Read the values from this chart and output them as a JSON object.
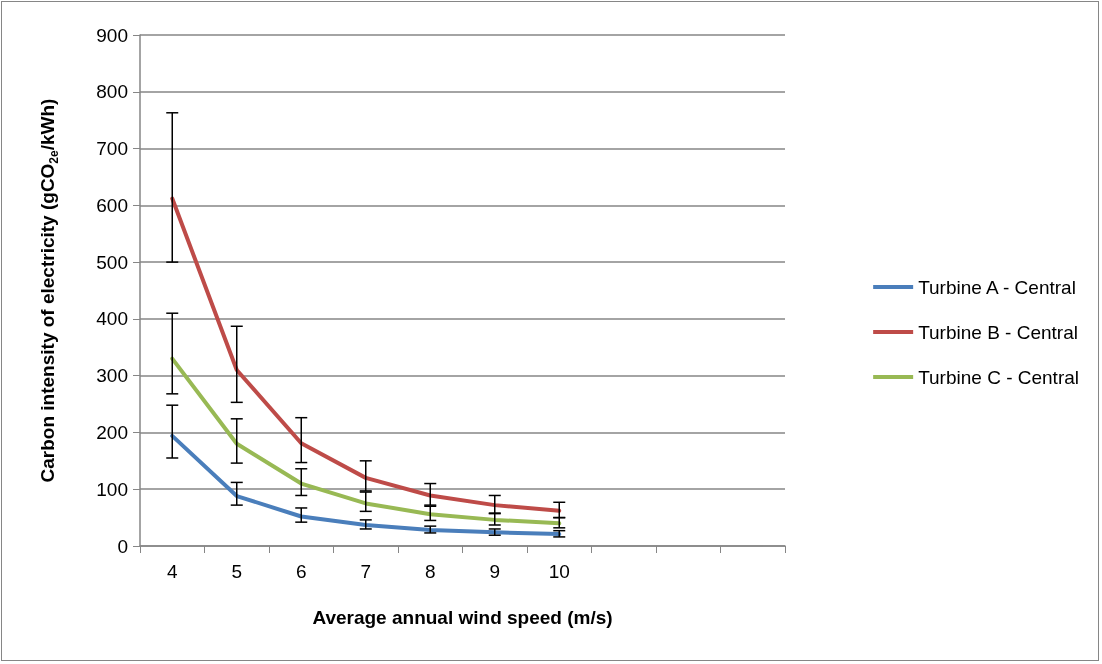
{
  "chart_data": {
    "type": "line",
    "xlabel": "Average annual wind speed (m/s)",
    "ylabel": "Carbon intensity of electricity (gCO$_{2e}$/kWh)",
    "categories": [
      "4",
      "5",
      "6",
      "7",
      "8",
      "9",
      "10",
      null,
      null,
      null
    ],
    "series": [
      {
        "name": "Turbine A - Central",
        "color": "#4a7ebb",
        "values": [
          194,
          88,
          52,
          37,
          28,
          24,
          21,
          null,
          null,
          null
        ],
        "errors": [
          [
            155,
            248
          ],
          [
            72,
            112
          ],
          [
            42,
            67
          ],
          [
            30,
            46
          ],
          [
            23,
            35
          ],
          [
            19,
            30
          ],
          [
            16,
            27
          ],
          null,
          null,
          null
        ]
      },
      {
        "name": "Turbine B - Central",
        "color": "#be4b48",
        "values": [
          612,
          310,
          181,
          120,
          89,
          72,
          62,
          null,
          null,
          null
        ],
        "errors": [
          [
            500,
            763
          ],
          [
            253,
            387
          ],
          [
            147,
            226
          ],
          [
            97,
            150
          ],
          [
            72,
            110
          ],
          [
            58,
            89
          ],
          [
            50,
            77
          ],
          null,
          null,
          null
        ]
      },
      {
        "name": "Turbine C - Central",
        "color": "#98b954",
        "values": [
          330,
          180,
          110,
          75,
          56,
          46,
          40,
          null,
          null,
          null
        ],
        "errors": [
          [
            268,
            410
          ],
          [
            146,
            224
          ],
          [
            89,
            136
          ],
          [
            61,
            95
          ],
          [
            45,
            70
          ],
          [
            37,
            57
          ],
          [
            32,
            50
          ],
          null,
          null,
          null
        ]
      }
    ],
    "ylim": [
      0,
      900
    ],
    "yticks": [
      0,
      100,
      200,
      300,
      400,
      500,
      600,
      700,
      800,
      900
    ],
    "grid": "y",
    "legend": "right",
    "marker": "none",
    "line_style": "solid"
  }
}
